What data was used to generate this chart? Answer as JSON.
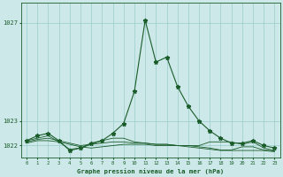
{
  "bg_color": "#cce8e8",
  "grid_color": "#99cccc",
  "line_color": "#1a5c2a",
  "xlabel": "Graphe pression niveau de la mer (hPa)",
  "hours": [
    0,
    1,
    2,
    3,
    4,
    5,
    6,
    7,
    8,
    9,
    10,
    11,
    12,
    13,
    14,
    15,
    16,
    17,
    18,
    19,
    20,
    21,
    22,
    23
  ],
  "series1": [
    1022.2,
    1022.4,
    1022.5,
    1022.2,
    1021.8,
    1021.9,
    1022.1,
    1022.2,
    1022.5,
    1022.9,
    1024.2,
    1027.1,
    1025.4,
    1025.6,
    1024.4,
    1023.6,
    1023.0,
    1022.6,
    1022.3,
    1022.1,
    1022.1,
    1022.2,
    1022.0,
    1021.9
  ],
  "series2": [
    1022.1,
    1022.2,
    1022.2,
    1022.15,
    1022.05,
    1021.95,
    1021.9,
    1021.95,
    1022.0,
    1022.05,
    1022.05,
    1022.05,
    1022.0,
    1022.0,
    1022.0,
    1021.95,
    1021.9,
    1021.85,
    1021.8,
    1021.8,
    1021.8,
    1021.8,
    1021.8,
    1021.75
  ],
  "series3": [
    1022.15,
    1022.25,
    1022.3,
    1022.2,
    1022.1,
    1022.0,
    1022.05,
    1022.1,
    1022.15,
    1022.15,
    1022.1,
    1022.1,
    1022.05,
    1022.05,
    1022.0,
    1022.0,
    1021.95,
    1021.9,
    1021.82,
    1021.82,
    1021.95,
    1021.95,
    1021.82,
    1021.78
  ],
  "series4": [
    1022.2,
    1022.3,
    1022.4,
    1022.15,
    1021.85,
    1021.9,
    1022.05,
    1022.2,
    1022.3,
    1022.3,
    1022.15,
    1022.1,
    1022.05,
    1022.05,
    1022.0,
    1022.0,
    1022.0,
    1022.15,
    1022.15,
    1022.15,
    1022.05,
    1022.15,
    1021.9,
    1021.8
  ],
  "ylim_min": 1021.5,
  "ylim_max": 1027.8,
  "yticks": [
    1022,
    1023,
    1027
  ],
  "ytick_labels": [
    "1022",
    "1023",
    "1027"
  ]
}
